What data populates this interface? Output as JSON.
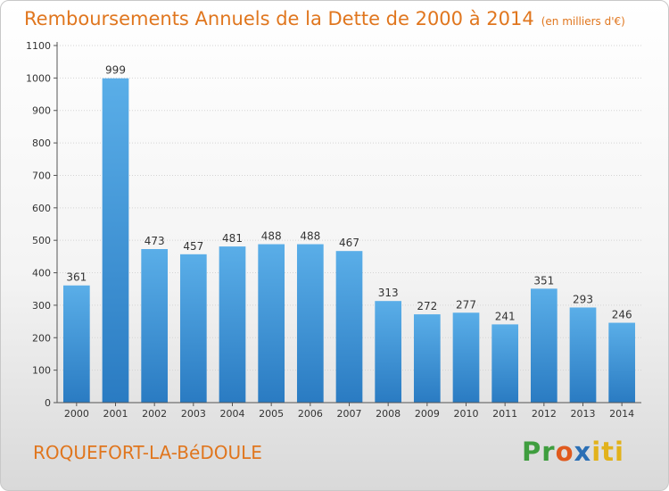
{
  "header": {
    "title": "Remboursements Annuels de la Dette de 2000 à 2014",
    "unit": "(en milliers d'€)"
  },
  "footer": {
    "commune": "ROQUEFORT-LA-BéDOULE",
    "brand": {
      "p1": "Pr",
      "p2": "o",
      "p3": "x",
      "p4": "iti"
    }
  },
  "colors": {
    "bar_top": "#5aaee8",
    "bar_bottom": "#2a7bc2",
    "title": "#e0761e"
  },
  "chart_data": {
    "type": "bar",
    "title": "Remboursements Annuels de la Dette de 2000 à 2014",
    "xlabel": "",
    "ylabel": "",
    "ylim": [
      0,
      1100
    ],
    "yticks": [
      0,
      100,
      200,
      300,
      400,
      500,
      600,
      700,
      800,
      900,
      1000,
      1100
    ],
    "grid": true,
    "categories": [
      "2000",
      "2001",
      "2002",
      "2003",
      "2004",
      "2005",
      "2006",
      "2007",
      "2008",
      "2009",
      "2010",
      "2011",
      "2012",
      "2013",
      "2014"
    ],
    "values": [
      361,
      999,
      473,
      457,
      481,
      488,
      488,
      467,
      313,
      272,
      277,
      241,
      351,
      293,
      246
    ]
  }
}
